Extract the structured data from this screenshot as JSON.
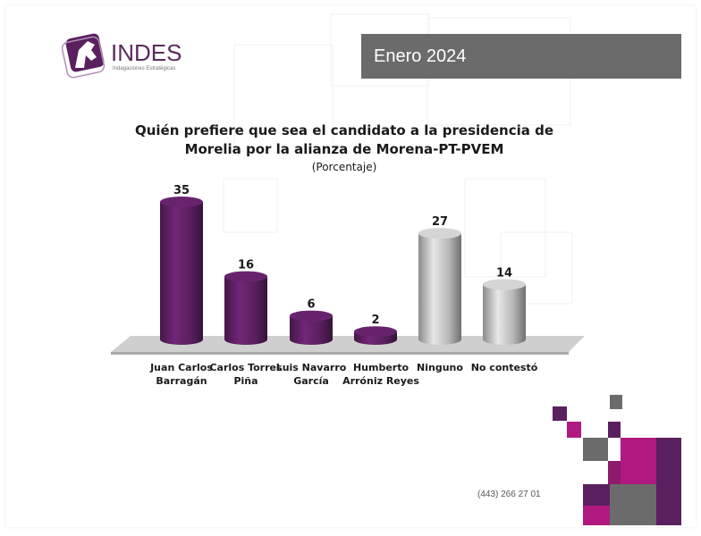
{
  "brand": {
    "name": "INDES",
    "tagline": "Indagaciones Estratégicas",
    "logo_icon": "horse-head-logo-icon",
    "colors": {
      "primary": "#5a1f5f",
      "gray": "#6b6b6b",
      "magenta": "#b0197f"
    }
  },
  "banner": {
    "date": "Enero 2024"
  },
  "footer": {
    "phone": "(443) 266 27 01"
  },
  "chart_data": {
    "type": "bar",
    "title_line1": "Quién prefiere que sea el candidato a la presidencia de",
    "title_line2": "Morelia por la alianza de Morena-PT-PVEM",
    "subtitle": "(Porcentaje)",
    "categories": [
      [
        "Juan Carlos",
        "Barragán"
      ],
      [
        "Carlos Torres",
        "Piña"
      ],
      [
        "Luis Navarro",
        "García"
      ],
      [
        "Humberto",
        "Arróniz Reyes"
      ],
      [
        "Ninguno"
      ],
      [
        "No contestó"
      ]
    ],
    "values": [
      35,
      16,
      6,
      2,
      27,
      14
    ],
    "bar_colors": [
      "#5a1f5f",
      "#5a1f5f",
      "#5a1f5f",
      "#5a1f5f",
      "#b9b9b9",
      "#b9b9b9"
    ],
    "ylim": [
      0,
      35
    ],
    "grid": false,
    "legend": "none"
  }
}
